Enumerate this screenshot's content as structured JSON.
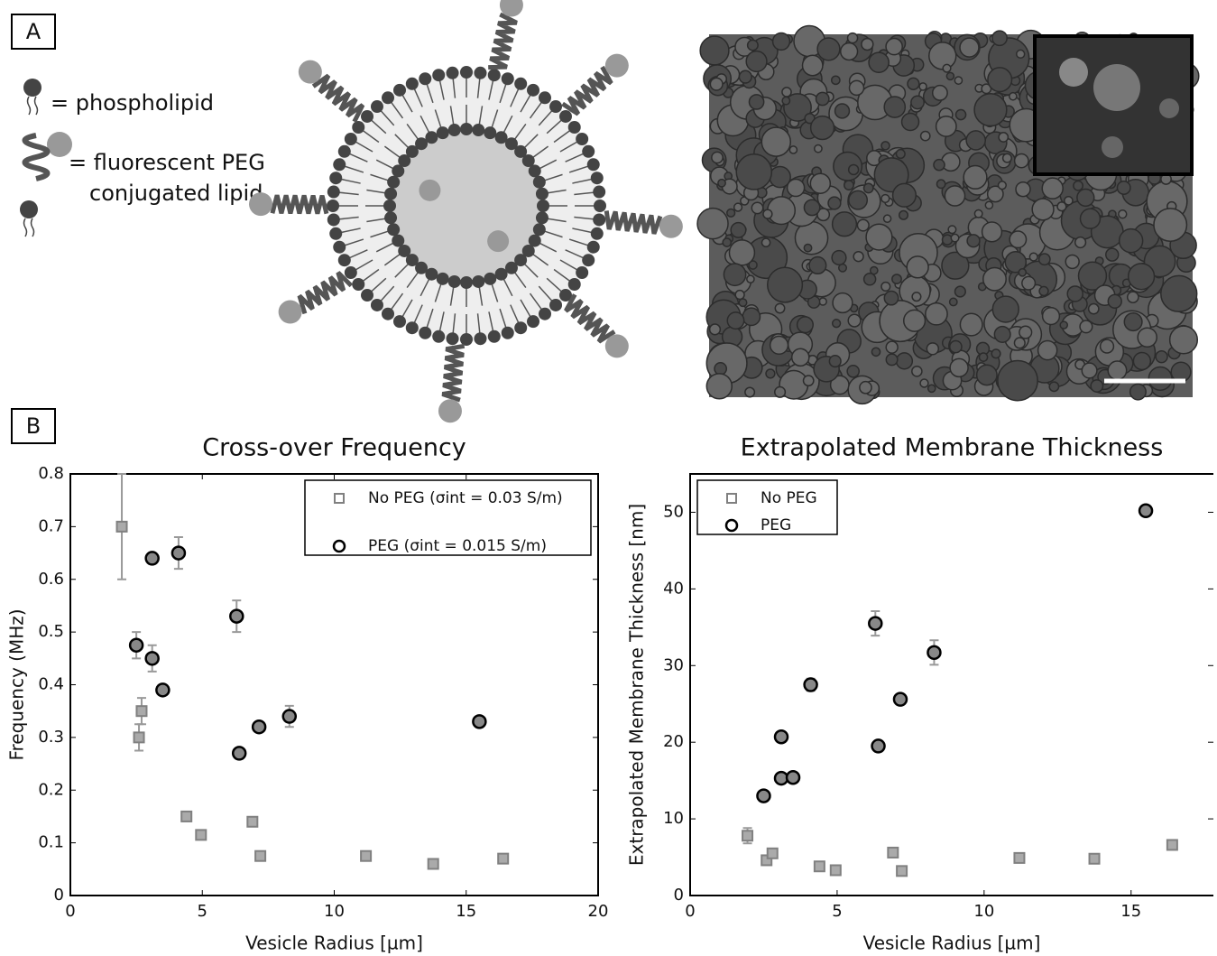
{
  "figure": {
    "panel_labels": [
      "A",
      "B"
    ],
    "key": [
      "= phospholipid",
      "= fluorescent PEG",
      "conjugated lipid"
    ]
  },
  "chart_data": [
    {
      "type": "scatter",
      "title": "Cross-over Frequency",
      "x_label": "Vesicle Radius [µm]",
      "y_label": "Frequency (MHz)",
      "xlim": [
        0,
        20
      ],
      "ylim": [
        0,
        0.8
      ],
      "xticks": [
        0,
        5,
        10,
        15,
        20
      ],
      "yticks": [
        0,
        0.1,
        0.2,
        0.3,
        0.4,
        0.5,
        0.6,
        0.7,
        0.8
      ],
      "legend": "upper right",
      "series": [
        {
          "name": "No PEG (σint = 0.03 S/m)",
          "color": "#808080",
          "marker": "square",
          "x": [
            1.95,
            2.7,
            2.6,
            4.4,
            4.95,
            6.9,
            7.2,
            11.2,
            13.75,
            16.4
          ],
          "values": [
            0.7,
            0.35,
            0.3,
            0.15,
            0.115,
            0.14,
            0.075,
            0.075,
            0.06,
            0.07
          ],
          "errors": [
            0.1,
            0.025,
            0.025,
            0.005,
            0.005,
            0.005,
            0.005,
            0.005,
            0.005,
            0.005
          ]
        },
        {
          "name": "PEG (σint = 0.015 S/m)",
          "color": "#000000",
          "marker": "circle",
          "x": [
            2.5,
            3.1,
            3.1,
            3.5,
            4.1,
            6.3,
            6.4,
            7.15,
            8.3,
            15.5
          ],
          "values": [
            0.475,
            0.64,
            0.45,
            0.39,
            0.65,
            0.53,
            0.27,
            0.32,
            0.34,
            0.33
          ],
          "errors": [
            0.025,
            0.005,
            0.025,
            0.005,
            0.03,
            0.03,
            0.005,
            0.005,
            0.02,
            0.005
          ]
        }
      ]
    },
    {
      "type": "scatter",
      "title": "Extrapolated Membrane Thickness",
      "x_label": "Vesicle Radius [µm]",
      "y_label": "Extrapolated Membrane Thickness [nm]",
      "xlim": [
        0,
        17.8
      ],
      "ylim": [
        0,
        55
      ],
      "xticks": [
        0,
        5,
        10,
        15
      ],
      "yticks": [
        0,
        10,
        20,
        30,
        40,
        50
      ],
      "legend": "upper left",
      "series": [
        {
          "name": "No PEG",
          "color": "#808080",
          "marker": "square",
          "x": [
            1.95,
            2.6,
            2.8,
            4.4,
            4.95,
            6.9,
            7.2,
            11.2,
            13.75,
            16.4
          ],
          "values": [
            7.8,
            4.6,
            5.5,
            3.8,
            3.3,
            5.6,
            3.2,
            4.9,
            4.8,
            6.6
          ],
          "errors": [
            1,
            0.4,
            0.4,
            0.4,
            0.4,
            0.4,
            0.4,
            0.4,
            0.4,
            0.4
          ]
        },
        {
          "name": "PEG",
          "color": "#000000",
          "marker": "circle",
          "x": [
            2.5,
            3.1,
            3.1,
            3.5,
            4.1,
            6.3,
            6.4,
            7.15,
            8.3,
            15.5
          ],
          "values": [
            13,
            20.7,
            15.3,
            15.4,
            27.5,
            35.5,
            19.5,
            25.6,
            31.7,
            50.2
          ],
          "errors": [
            0.4,
            0.4,
            0.4,
            0.4,
            0.8,
            1.6,
            0.4,
            0.4,
            1.6,
            0.4
          ]
        }
      ]
    }
  ]
}
